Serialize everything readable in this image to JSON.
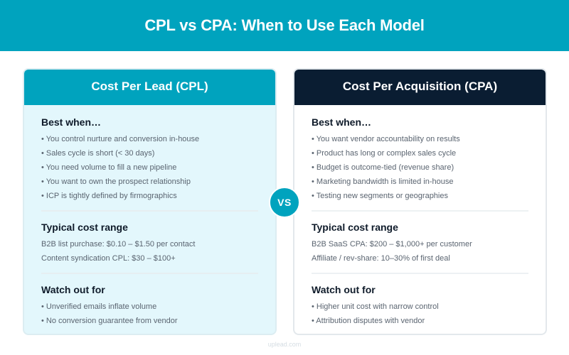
{
  "header": {
    "title": "CPL vs CPA: When to Use Each Model"
  },
  "colors": {
    "teal": "#00A3BE",
    "navy": "#0A1D32",
    "left_body": "#E3F7FC"
  },
  "vs_label": "VS",
  "cards": [
    {
      "title": "Cost Per Lead (CPL)",
      "best_when": {
        "heading": "Best when…",
        "items": [
          "• You control nurture and conversion in-house",
          "• Sales cycle is short (< 30 days)",
          "• You need volume to fill a new pipeline",
          "• You want to own the prospect relationship",
          "• ICP is tightly defined by firmographics"
        ]
      },
      "cost_range": {
        "heading": "Typical cost range",
        "items": [
          "B2B list purchase: $0.10 – $1.50 per contact",
          "Content syndication CPL: $30 – $100+"
        ]
      },
      "watch_out": {
        "heading": "Watch out for",
        "items": [
          "• Unverified emails inflate volume",
          "• No conversion guarantee from vendor"
        ]
      }
    },
    {
      "title": "Cost Per Acquisition (CPA)",
      "best_when": {
        "heading": "Best when…",
        "items": [
          "• You want vendor accountability on results",
          "• Product has long or complex sales cycle",
          "• Budget is outcome-tied (revenue share)",
          "• Marketing bandwidth is limited in-house",
          "• Testing new segments or geographies"
        ]
      },
      "cost_range": {
        "heading": "Typical cost range",
        "items": [
          "B2B SaaS CPA: $200 – $1,000+ per customer",
          "Affiliate / rev-share: 10–30% of first deal"
        ]
      },
      "watch_out": {
        "heading": "Watch out for",
        "items": [
          "• Higher unit cost with narrow control",
          "• Attribution disputes with vendor"
        ]
      }
    }
  ],
  "footer": {
    "text": "uplead.com"
  }
}
